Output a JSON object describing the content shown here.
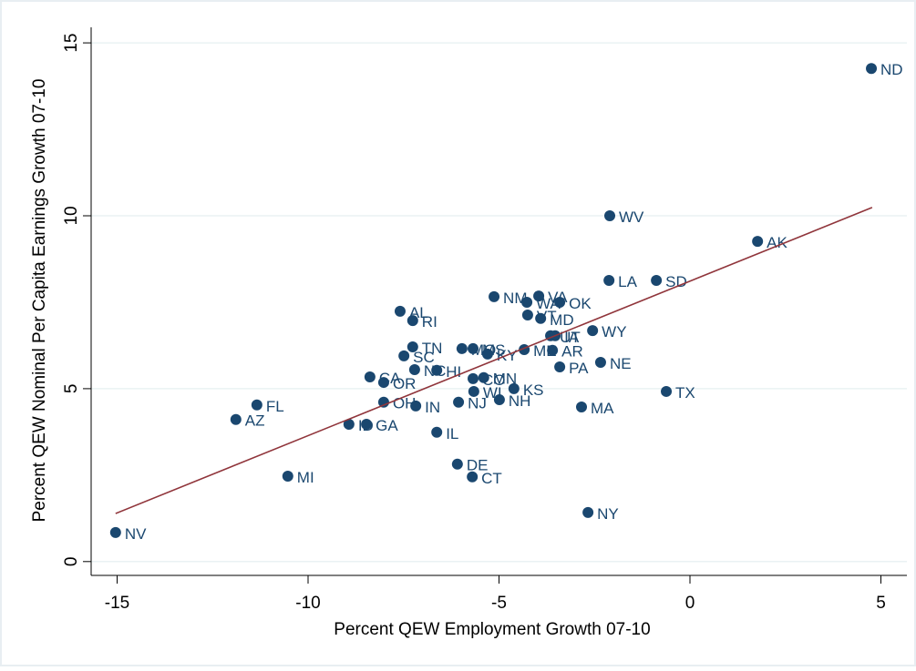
{
  "chart_data": {
    "type": "scatter",
    "x_label": "Percent QEW Employment Growth 07-10",
    "y_label": "Percent QEW Nominal Per Capita Earnings Growth 07-10",
    "labels": [
      "ND",
      "WV",
      "AK",
      "LA",
      "SD",
      "NM",
      "VA",
      "WA",
      "OK",
      "VT",
      "MD",
      "AL",
      "RI",
      "WY",
      "TN",
      "MO",
      "MS",
      "KY",
      "ME",
      "AR",
      "UT",
      "IA",
      "SC",
      "NE",
      "PA",
      "NC",
      "HI",
      "CA",
      "OR",
      "CO",
      "MN",
      "OH",
      "WI",
      "KS",
      "NH",
      "TX",
      "NJ",
      "MA",
      "ID",
      "GA",
      "IN",
      "FL",
      "AZ",
      "IL",
      "DE",
      "CT",
      "MI",
      "NY",
      "NV"
    ],
    "x": [
      4.75,
      -2.1,
      1.77,
      -2.12,
      -0.88,
      -5.13,
      -3.96,
      -4.27,
      -3.41,
      -4.25,
      -3.91,
      -7.59,
      -7.26,
      -2.55,
      -7.26,
      -5.97,
      -5.68,
      -5.3,
      -4.34,
      -3.6,
      -3.65,
      -3.53,
      -7.49,
      -2.34,
      -3.41,
      -7.21,
      -6.63,
      -8.38,
      -8.02,
      -5.68,
      -5.4,
      -8.02,
      -5.66,
      -4.61,
      -4.99,
      -0.62,
      -6.06,
      -2.84,
      -8.93,
      -8.47,
      -7.18,
      -11.34,
      -11.89,
      -6.63,
      -6.09,
      -5.7,
      -10.53,
      -2.67,
      -15.04
    ],
    "values": [
      14.26,
      10.0,
      9.26,
      8.13,
      8.13,
      7.66,
      7.68,
      7.5,
      7.5,
      7.13,
      7.03,
      7.24,
      6.97,
      6.68,
      6.21,
      6.16,
      6.16,
      6.0,
      6.13,
      6.11,
      6.53,
      6.53,
      5.95,
      5.76,
      5.63,
      5.55,
      5.53,
      5.34,
      5.18,
      5.29,
      5.32,
      4.61,
      4.92,
      5.0,
      4.68,
      4.92,
      4.61,
      4.47,
      3.97,
      3.97,
      4.5,
      4.53,
      4.11,
      3.74,
      2.82,
      2.45,
      2.47,
      1.42,
      0.84
    ],
    "color": "#1a476f",
    "fit": {
      "x": [
        -15.04,
        4.77
      ],
      "values": [
        1.39,
        10.24
      ],
      "color": "#90353b"
    },
    "xlim": [
      -15.68,
      5.68
    ],
    "ylim": [
      -0.4,
      15.45
    ],
    "xticks": [
      -15,
      -10,
      -5,
      0,
      5
    ],
    "yticks": [
      0,
      5,
      10,
      15
    ],
    "grid": true
  }
}
